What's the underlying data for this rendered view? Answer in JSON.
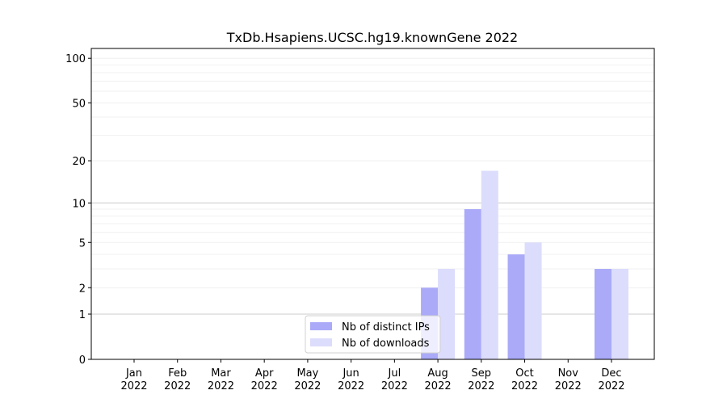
{
  "chart_data": {
    "type": "bar",
    "title": "TxDb.Hsapiens.UCSC.hg19.knownGene 2022",
    "xlabel": "",
    "ylabel": "",
    "y_scale": "log(1+y)",
    "ylim": [
      0,
      116
    ],
    "yticks": [
      0,
      1,
      2,
      5,
      10,
      20,
      50,
      100
    ],
    "grid": true,
    "legend_position": "bottom-center",
    "categories": [
      [
        "Jan",
        "2022"
      ],
      [
        "Feb",
        "2022"
      ],
      [
        "Mar",
        "2022"
      ],
      [
        "Apr",
        "2022"
      ],
      [
        "May",
        "2022"
      ],
      [
        "Jun",
        "2022"
      ],
      [
        "Jul",
        "2022"
      ],
      [
        "Aug",
        "2022"
      ],
      [
        "Sep",
        "2022"
      ],
      [
        "Oct",
        "2022"
      ],
      [
        "Nov",
        "2022"
      ],
      [
        "Dec",
        "2022"
      ]
    ],
    "series": [
      {
        "name": "Nb of distinct IPs",
        "color": "#aaaaf9",
        "values": [
          0,
          0,
          0,
          0,
          0,
          0,
          0,
          2,
          9,
          4,
          0,
          3
        ]
      },
      {
        "name": "Nb of downloads",
        "color": "#dcdcfc",
        "values": [
          0,
          0,
          0,
          0,
          0,
          0,
          0,
          3,
          17,
          5,
          0,
          3
        ]
      }
    ]
  }
}
